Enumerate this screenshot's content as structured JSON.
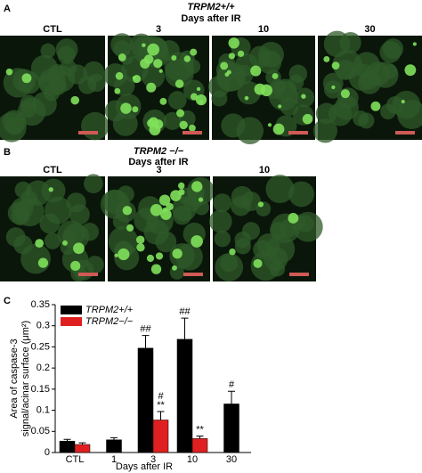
{
  "panel_a": {
    "label": "A",
    "genotype": "TRPM2+/+",
    "subtitle": "Days after IR",
    "columns": [
      "CTL",
      "3",
      "10",
      "30"
    ]
  },
  "panel_b": {
    "label": "B",
    "genotype": "TRPM2 −/−",
    "subtitle": "Days after IR",
    "columns": [
      "CTL",
      "3",
      "10"
    ]
  },
  "chart_data": {
    "type": "bar",
    "panel_label": "C",
    "ylabel": [
      "Area of caspase-3",
      "signal/acinar surface (μm²)"
    ],
    "xlabel": "Days after IR",
    "categories": [
      "CTL",
      "1",
      "3",
      "10",
      "30"
    ],
    "series": [
      {
        "name": "TRPM2+/+",
        "color": "#000000",
        "values": [
          0.027,
          0.03,
          0.247,
          0.268,
          0.115
        ],
        "errors": [
          0.004,
          0.005,
          0.03,
          0.05,
          0.03
        ],
        "annotations": [
          [],
          [],
          [
            "##"
          ],
          [
            "##"
          ],
          [
            "#"
          ]
        ]
      },
      {
        "name": "TRPM2−/−",
        "color": "#e02020",
        "values": [
          0.019,
          null,
          0.077,
          0.033,
          null
        ],
        "errors": [
          0.004,
          null,
          0.02,
          0.006,
          null
        ],
        "annotations": [
          [],
          [],
          [
            "#",
            "**"
          ],
          [
            "**"
          ],
          []
        ]
      }
    ],
    "ylim": [
      0,
      0.35
    ],
    "yticks": [
      0,
      0.05,
      0.1,
      0.15,
      0.2,
      0.25,
      0.3,
      0.35
    ],
    "legend": "top-left"
  }
}
